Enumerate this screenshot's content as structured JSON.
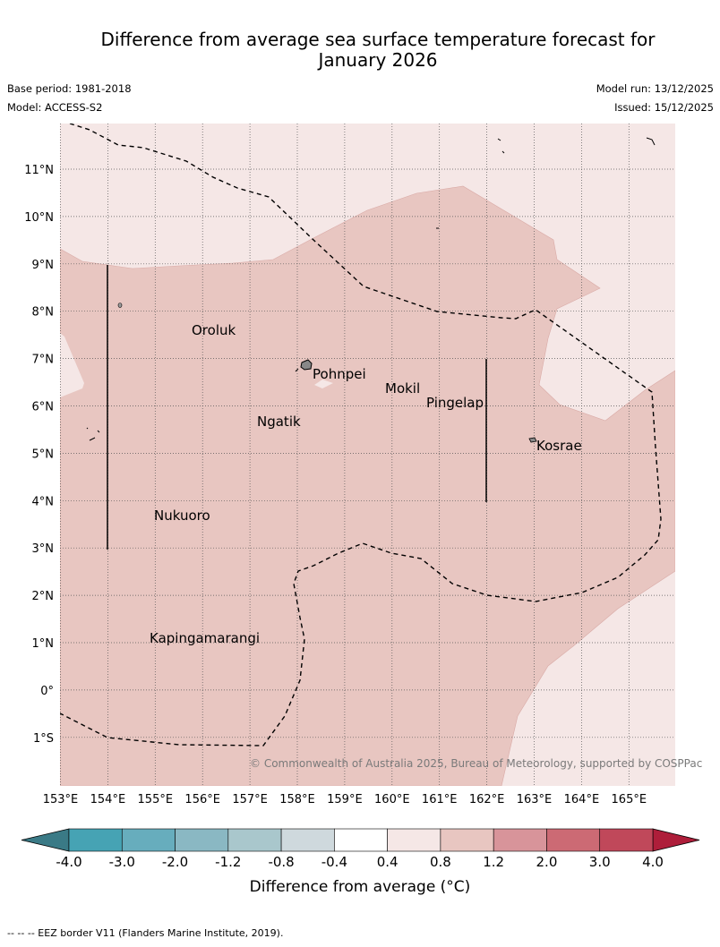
{
  "title_line1": "Difference from average sea surface temperature forecast for",
  "title_line2": "January 2026",
  "base_period": "Base period: 1981-2018",
  "model": "Model: ACCESS-S2",
  "model_run": "Model run: 13/12/2025",
  "issued": "Issued: 15/12/2025",
  "copyright": "© Commonwealth of Australia 2025, Bureau of Meteorology, supported by COSPPac",
  "lat_labels": [
    "11°N",
    "10°N",
    "9°N",
    "8°N",
    "7°N",
    "6°N",
    "5°N",
    "4°N",
    "3°N",
    "2°N",
    "1°N",
    "0°",
    "1°S"
  ],
  "lon_labels": [
    "153°E",
    "154°E",
    "155°E",
    "156°E",
    "157°E",
    "158°E",
    "159°E",
    "160°E",
    "161°E",
    "162°E",
    "163°E",
    "164°E",
    "165°E"
  ],
  "places": [
    {
      "name": "Oroluk"
    },
    {
      "name": "Pohnpei"
    },
    {
      "name": "Mokil"
    },
    {
      "name": "Pingelap"
    },
    {
      "name": "Ngatik"
    },
    {
      "name": "Kosrae"
    },
    {
      "name": "Nukuoro"
    },
    {
      "name": "Kapingamarangi"
    }
  ],
  "colorbar": {
    "label": "Difference from average (°C)",
    "ticks": [
      "-4.0",
      "-3.0",
      "-2.0",
      "-1.2",
      "-0.8",
      "-0.4",
      "0.4",
      "0.8",
      "1.2",
      "2.0",
      "3.0",
      "4.0"
    ],
    "colors": [
      "#46a3b4",
      "#67adbd",
      "#8ab8c3",
      "#a9c7cc",
      "#cfd9dd",
      "#ffffff",
      "#f5e7e6",
      "#e8c6c1",
      "#d8949a",
      "#cc6a74",
      "#c0485a"
    ],
    "under_color": "#3a7a86",
    "over_color": "#ae1e3a"
  },
  "map_colors": {
    "band_0_4_to_0_8": "#f5e7e6",
    "band_0_8_to_1_2": "#e8c6c1"
  },
  "footer": "-- -- -- EEZ border V11 (Flanders Marine Institute, 2019)."
}
